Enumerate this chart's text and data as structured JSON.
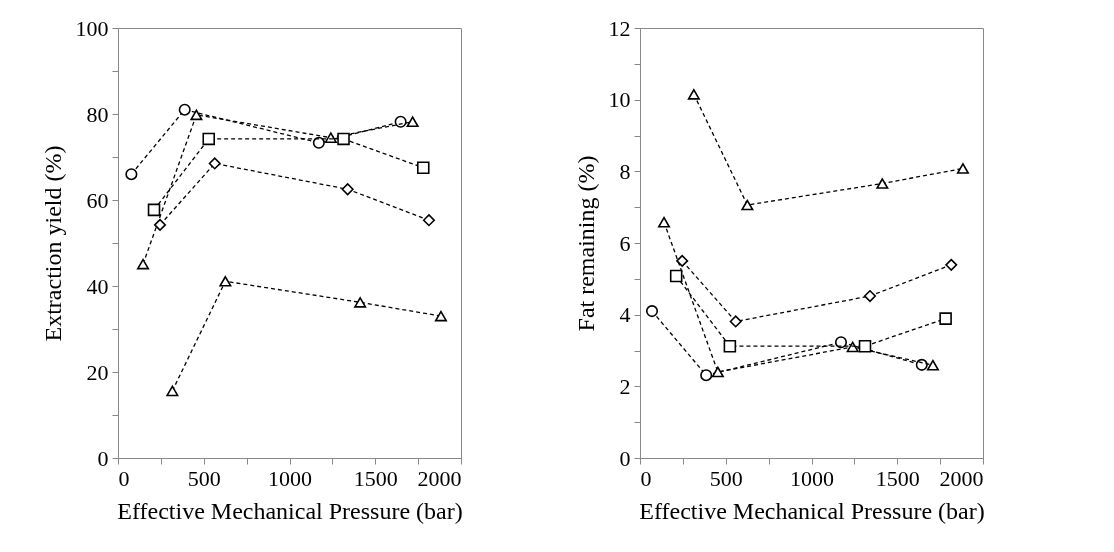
{
  "chart_data": [
    {
      "type": "line",
      "xlabel": "Effective Mechanical Pressure (bar)",
      "ylabel": "Extraction yield (%)",
      "xlim": [
        0,
        2000
      ],
      "xticks": [
        0,
        {
          "value": 250,
          "label": null
        },
        500,
        {
          "value": 750,
          "label": null
        },
        1000,
        {
          "value": 1250,
          "label": null
        },
        1500,
        {
          "value": 1750,
          "label": null
        },
        2000
      ],
      "ylim": [
        0,
        100
      ],
      "yticks": [
        0,
        {
          "value": 10,
          "label": null
        },
        20,
        {
          "value": 30,
          "label": null
        },
        40,
        {
          "value": 50,
          "label": null
        },
        60,
        {
          "value": 70,
          "label": null
        },
        80,
        {
          "value": 90,
          "label": null
        },
        100
      ],
      "grid": false,
      "line_style": "dashed",
      "series": [
        {
          "color": "#000000",
          "marker": "circle",
          "x": [
            78,
            389,
            1171,
            1648
          ],
          "values": [
            66.0,
            81.0,
            73.3,
            78.2
          ]
        },
        {
          "color": "#000000",
          "marker": "triangle",
          "x": [
            146,
            457,
            1241,
            1718
          ],
          "values": [
            45.1,
            79.8,
            74.5,
            78.2
          ]
        },
        {
          "color": "#000000",
          "marker": "square",
          "x": [
            210,
            529,
            1315,
            1780
          ],
          "values": [
            57.7,
            74.2,
            74.2,
            67.5
          ]
        },
        {
          "color": "#000000",
          "marker": "diamond",
          "x": [
            245,
            564,
            1339,
            1813
          ],
          "values": [
            54.2,
            68.5,
            62.5,
            55.3
          ]
        },
        {
          "color": "#000000",
          "marker": "triangle",
          "x": [
            317,
            626,
            1412,
            1883
          ],
          "values": [
            15.6,
            41.1,
            36.2,
            33.0
          ]
        }
      ]
    },
    {
      "type": "line",
      "xlabel": "Effective Mechanical Pressure (bar)",
      "ylabel": "Fat remaining (%)",
      "xlim": [
        0,
        2000
      ],
      "xticks": [
        0,
        {
          "value": 250,
          "label": null
        },
        500,
        {
          "value": 750,
          "label": null
        },
        1000,
        {
          "value": 1250,
          "label": null
        },
        1500,
        {
          "value": 1750,
          "label": null
        },
        2000
      ],
      "ylim": [
        0,
        12
      ],
      "yticks": [
        0,
        {
          "value": 1,
          "label": null
        },
        2,
        {
          "value": 3,
          "label": null
        },
        4,
        {
          "value": 5,
          "label": null
        },
        6,
        {
          "value": 7,
          "label": null
        },
        8,
        {
          "value": 9,
          "label": null
        },
        10,
        {
          "value": 11,
          "label": null
        },
        12
      ],
      "grid": false,
      "line_style": "dashed",
      "series": [
        {
          "color": "#000000",
          "marker": "circle",
          "x": [
            70,
            386,
            1172,
            1643
          ],
          "values": [
            4.1,
            2.31,
            3.23,
            2.6
          ]
        },
        {
          "color": "#000000",
          "marker": "triangle",
          "x": [
            140,
            454,
            1240,
            1708
          ],
          "values": [
            6.58,
            2.4,
            3.1,
            2.59
          ]
        },
        {
          "color": "#000000",
          "marker": "square",
          "x": [
            211,
            524,
            1312,
            1782
          ],
          "values": [
            5.08,
            3.12,
            3.12,
            3.89
          ]
        },
        {
          "color": "#000000",
          "marker": "diamond",
          "x": [
            246,
            558,
            1341,
            1815
          ],
          "values": [
            5.5,
            3.81,
            4.52,
            5.39
          ]
        },
        {
          "color": "#000000",
          "marker": "triangle",
          "x": [
            314,
            626,
            1413,
            1883
          ],
          "values": [
            10.15,
            7.06,
            7.66,
            8.08
          ]
        }
      ]
    }
  ]
}
